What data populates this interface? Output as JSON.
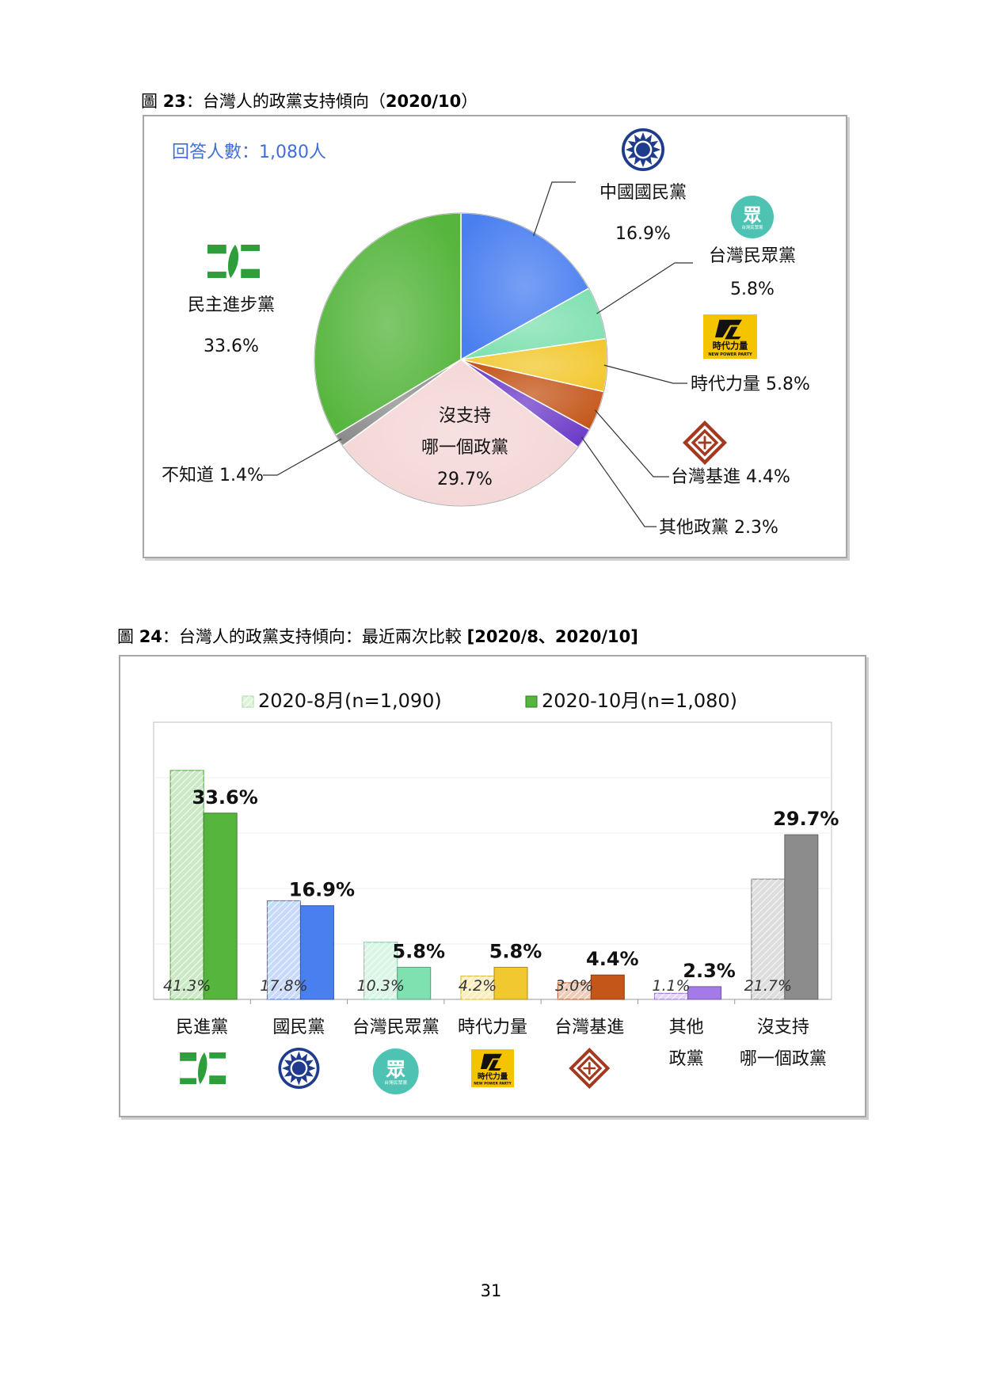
{
  "figure23": {
    "caption_prefix": "圖 ",
    "caption_num": "23",
    "caption_text": "：台灣人的政黨支持傾向（",
    "caption_date": "2020/10",
    "caption_end": "）",
    "respondents": "回答人數：1,080人"
  },
  "figure24": {
    "caption_prefix": "圖 ",
    "caption_num": "24",
    "caption_text": "：台灣人的政黨支持傾向：最近兩次比較 ",
    "caption_bold": "[2020/8、2020/10]"
  },
  "page_number": "31",
  "chart_data": [
    {
      "type": "pie",
      "note": "回答人數：1,080人",
      "slices": [
        {
          "label_lines": [
            "中國國民黨",
            "16.9%"
          ],
          "value": 16.9,
          "color": "#4a7ff0",
          "icon": "kmt-sun-icon"
        },
        {
          "label_lines": [
            "台灣民眾黨",
            "5.8%"
          ],
          "value": 5.8,
          "color": "#7fe0b0",
          "icon": "tpp-logo-icon"
        },
        {
          "label_lines": [
            "時代力量 5.8%"
          ],
          "value": 5.8,
          "color": "#f2c830",
          "icon": "npp-logo-icon"
        },
        {
          "label_lines": [
            "台灣基進 4.4%"
          ],
          "value": 4.4,
          "color": "#c4561a",
          "icon": "tsp-diamond-icon"
        },
        {
          "label_lines": [
            "其他政黨 2.3%"
          ],
          "value": 2.3,
          "color": "#6e3cc8",
          "icon": ""
        },
        {
          "label_lines": [
            "沒支持",
            "哪一個政黨",
            "29.7%"
          ],
          "value": 29.7,
          "color": "#f4d6d6",
          "icon": ""
        },
        {
          "label_lines": [
            "不知道 1.4%"
          ],
          "value": 1.4,
          "color": "#8c8c8c",
          "icon": ""
        },
        {
          "label_lines": [
            "民主進步黨",
            "33.6%"
          ],
          "value": 33.6,
          "color": "#55b53c",
          "icon": "dpp-logo-icon"
        }
      ]
    },
    {
      "type": "bar",
      "legend_position": "top",
      "categories": [
        {
          "lines": [
            "民進黨"
          ],
          "icon": "dpp-logo-icon"
        },
        {
          "lines": [
            "國民黨"
          ],
          "icon": "kmt-sun-icon"
        },
        {
          "lines": [
            "台灣民眾黨"
          ],
          "icon": "tpp-logo-icon"
        },
        {
          "lines": [
            "時代力量"
          ],
          "icon": "npp-logo-icon"
        },
        {
          "lines": [
            "台灣基進"
          ],
          "icon": "tsp-diamond-icon"
        },
        {
          "lines": [
            "其他",
            "政黨"
          ],
          "icon": ""
        },
        {
          "lines": [
            "沒支持",
            "哪一個政黨"
          ],
          "icon": ""
        }
      ],
      "colors": [
        "#55b53c",
        "#4a7ff0",
        "#7fe0b0",
        "#f2c830",
        "#c4561a",
        "#a47ae8",
        "#8c8c8c"
      ],
      "series": [
        {
          "name": "2020-8月(n=1,090)",
          "values": [
            41.3,
            17.8,
            10.3,
            4.2,
            3.0,
            1.1,
            21.7
          ],
          "labels": [
            "41.3%",
            "17.8%",
            "10.3%",
            "4.2%",
            "3.0%",
            "1.1%",
            "21.7%"
          ]
        },
        {
          "name": "2020-10月(n=1,080)",
          "values": [
            33.6,
            16.9,
            5.8,
            5.8,
            4.4,
            2.3,
            29.7
          ],
          "labels": [
            "33.6%",
            "16.9%",
            "5.8%",
            "5.8%",
            "4.4%",
            "2.3%",
            "29.7%"
          ]
        }
      ],
      "ylim": [
        0,
        50
      ],
      "grid": true
    }
  ],
  "logos": {
    "tpp_text": "眾",
    "tpp_sub": "台灣民眾黨",
    "npp_text": "時代力量",
    "npp_sub": "NEW POWER PARTY"
  }
}
